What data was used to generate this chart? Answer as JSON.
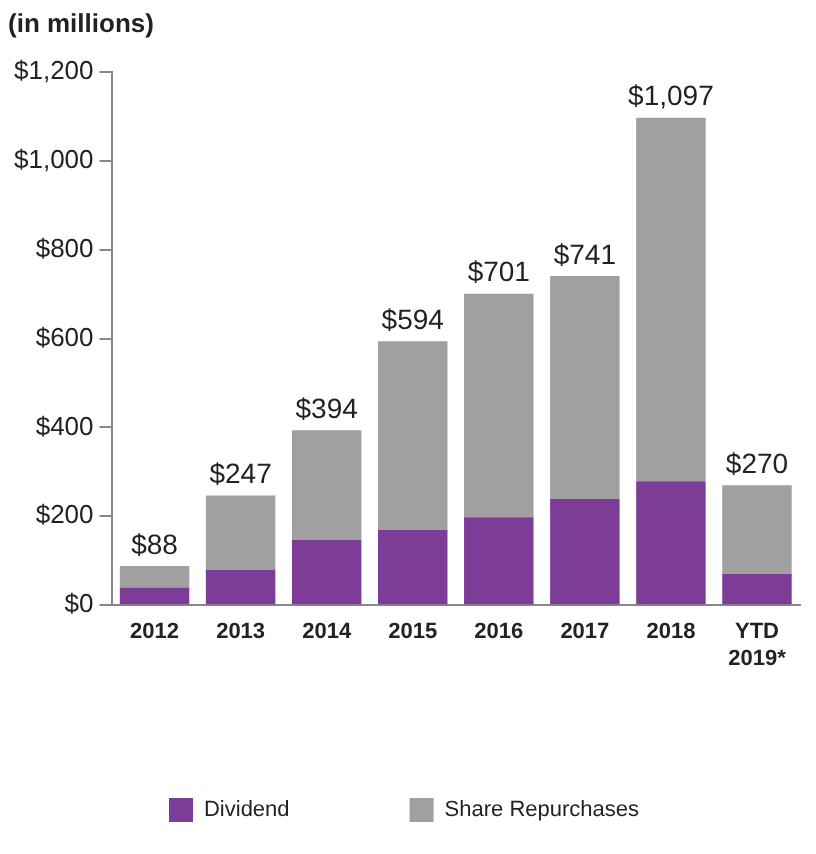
{
  "chart_data": {
    "type": "bar",
    "ylabel": "(in millions)",
    "stacked": true,
    "categories": [
      "2012",
      "2013",
      "2014",
      "2015",
      "2016",
      "2017",
      "2018",
      "YTD 2019*"
    ],
    "series": [
      {
        "name": "Dividend",
        "color": "#7d3c98",
        "values": [
          40,
          80,
          147,
          169,
          198,
          239,
          279,
          70
        ]
      },
      {
        "name": "Share Repurchases",
        "color": "#a0a0a0",
        "values": [
          48,
          167,
          247,
          425,
          503,
          502,
          818,
          200
        ]
      }
    ],
    "totals": [
      "$88",
      "$247",
      "$394",
      "$594",
      "$701",
      "$741",
      "$1,097",
      "$270"
    ],
    "ylim": [
      0,
      1200
    ],
    "yticks": [
      {
        "value": 0,
        "label": "$0"
      },
      {
        "value": 200,
        "label": "$200"
      },
      {
        "value": 400,
        "label": "$400"
      },
      {
        "value": 600,
        "label": "$600"
      },
      {
        "value": 800,
        "label": "$800"
      },
      {
        "value": 1000,
        "label": "$1,000"
      },
      {
        "value": 1200,
        "label": "$1,200"
      }
    ],
    "grid": false,
    "legend": "bottom"
  }
}
